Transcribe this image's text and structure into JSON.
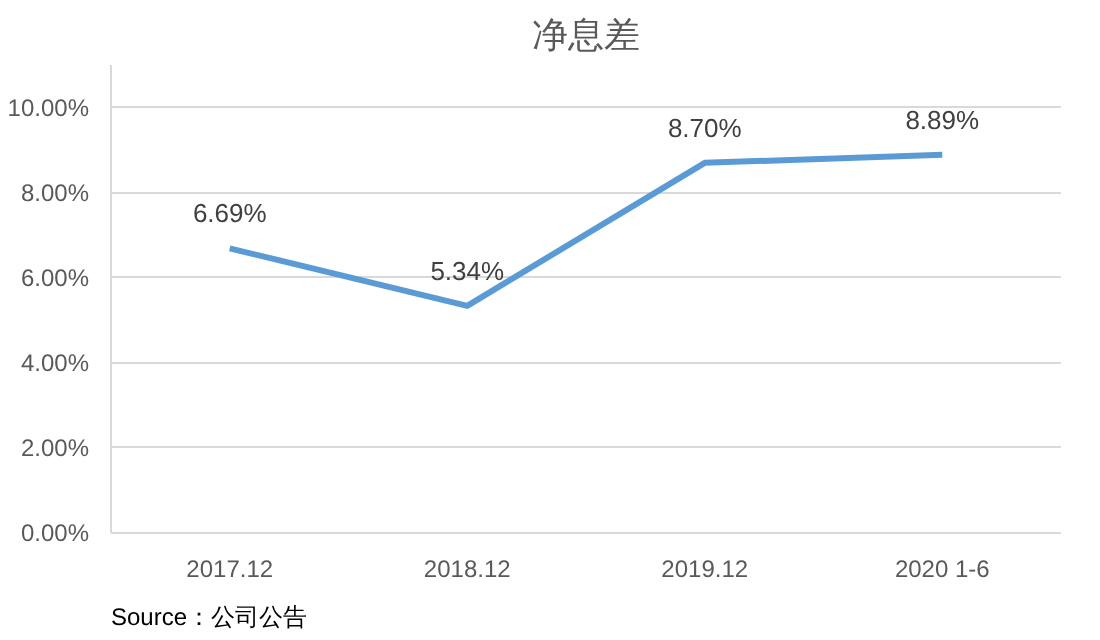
{
  "chart_data": {
    "type": "line",
    "title": "净息差",
    "categories": [
      "2017.12",
      "2018.12",
      "2019.12",
      "2020 1-6"
    ],
    "series": [
      {
        "color": "#5b9bd5",
        "values": [
          6.69,
          5.34,
          8.7,
          8.89
        ]
      }
    ],
    "value_labels": [
      "6.69%",
      "5.34%",
      "8.70%",
      "8.89%"
    ],
    "ylim": [
      0,
      11
    ],
    "yticks": [
      {
        "value": 0,
        "label": "0.00%"
      },
      {
        "value": 2,
        "label": "2.00%"
      },
      {
        "value": 4,
        "label": "4.00%"
      },
      {
        "value": 6,
        "label": "6.00%"
      },
      {
        "value": 8,
        "label": "8.00%"
      },
      {
        "value": 10,
        "label": "10.00%"
      }
    ],
    "grid": "y",
    "marker": "none",
    "line_style": "solid",
    "annotations": [
      "Source：公司公告"
    ]
  }
}
